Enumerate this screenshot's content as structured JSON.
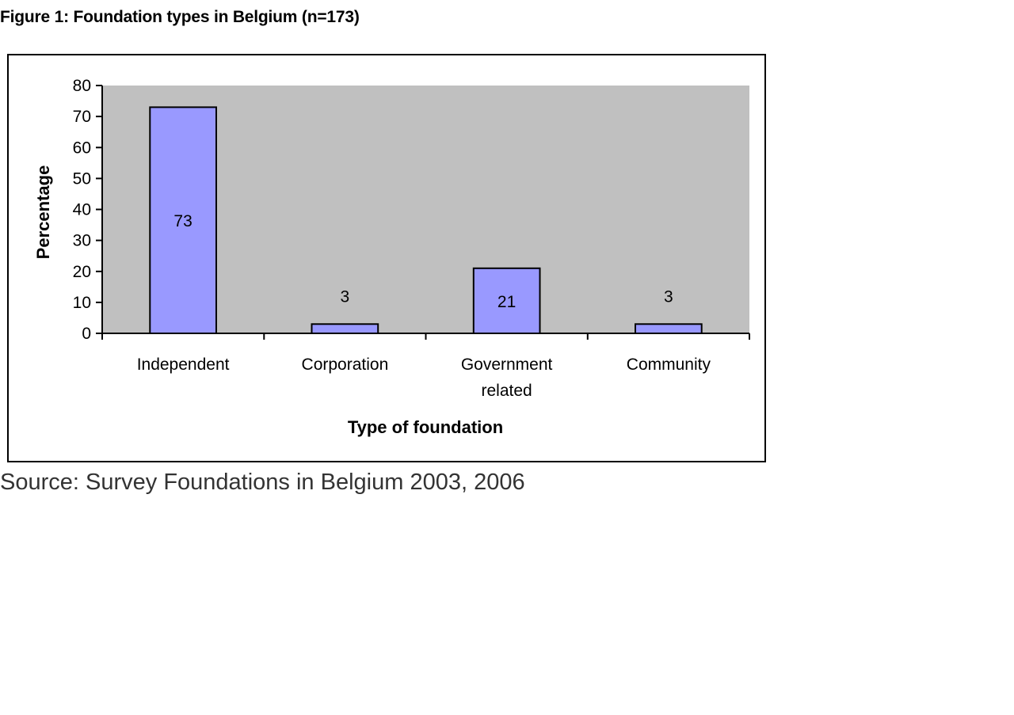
{
  "figure": {
    "title": "Figure 1: Foundation types in Belgium (n=173)",
    "source": "Source: Survey Foundations in Belgium 2003, 2006"
  },
  "chart_data": {
    "type": "bar",
    "categories": [
      [
        "Independent"
      ],
      [
        "Corporation"
      ],
      [
        "Government",
        "related"
      ],
      [
        "Community"
      ]
    ],
    "values": [
      73,
      3,
      21,
      3
    ],
    "data_labels": [
      "73",
      "3",
      "21",
      "3"
    ],
    "xlabel": "Type of foundation",
    "ylabel": "Percentage",
    "ylim": [
      0,
      80
    ],
    "yticks": [
      "0",
      "10",
      "20",
      "30",
      "40",
      "50",
      "60",
      "70",
      "80"
    ],
    "grid": false,
    "legend": "none",
    "colors": {
      "bar_fill": "#9999ff",
      "bar_stroke": "#000000",
      "plot_background": "#c0c0c0"
    }
  }
}
